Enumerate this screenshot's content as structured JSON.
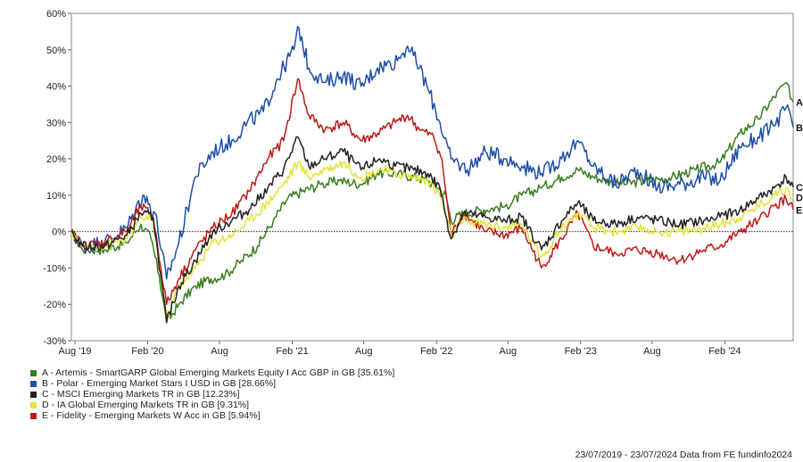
{
  "chart_data": {
    "type": "line",
    "title": "",
    "xlabel": "",
    "ylabel": "",
    "ylim": [
      -30,
      60
    ],
    "y_ticks": [
      -30,
      -20,
      -10,
      0,
      10,
      20,
      30,
      40,
      50,
      60
    ],
    "y_tick_labels": [
      "-30%",
      "-20%",
      "-10%",
      "0%",
      "10%",
      "20%",
      "30%",
      "40%",
      "50%",
      "60%"
    ],
    "x_range": [
      "2019-07-23",
      "2024-07-23"
    ],
    "x_ticks": [
      {
        "date": "2019-08-01",
        "label": "Aug '19"
      },
      {
        "date": "2020-02-01",
        "label": "Feb '20"
      },
      {
        "date": "2020-08-01",
        "label": "Aug"
      },
      {
        "date": "2021-02-01",
        "label": "Feb '21"
      },
      {
        "date": "2021-08-01",
        "label": "Aug"
      },
      {
        "date": "2022-02-01",
        "label": "Feb '22"
      },
      {
        "date": "2022-08-01",
        "label": "Aug"
      },
      {
        "date": "2023-02-01",
        "label": "Feb '23"
      },
      {
        "date": "2023-08-01",
        "label": "Aug"
      },
      {
        "date": "2024-02-01",
        "label": "Feb '24"
      }
    ],
    "zero_line": "dotted",
    "grid": false,
    "legend_position": "bottom-left",
    "series": [
      {
        "id": "A",
        "name": "A - Artemis - SmartGARP Global Emerging Markets Equity I Acc GBP in GB [35.61%]",
        "color": "#3b7d1e",
        "points": [
          [
            "2019-07-23",
            0
          ],
          [
            "2019-08-20",
            -5
          ],
          [
            "2019-10-15",
            -5
          ],
          [
            "2019-12-10",
            -3
          ],
          [
            "2020-01-15",
            2
          ],
          [
            "2020-02-10",
            -2
          ],
          [
            "2020-03-01",
            -12
          ],
          [
            "2020-03-20",
            -25
          ],
          [
            "2020-04-20",
            -20
          ],
          [
            "2020-06-01",
            -15
          ],
          [
            "2020-07-10",
            -13
          ],
          [
            "2020-08-15",
            -12
          ],
          [
            "2020-09-25",
            -8
          ],
          [
            "2020-11-05",
            -4
          ],
          [
            "2020-12-15",
            3
          ],
          [
            "2021-01-20",
            9
          ],
          [
            "2021-02-25",
            11
          ],
          [
            "2021-04-15",
            13
          ],
          [
            "2021-06-01",
            14
          ],
          [
            "2021-07-25",
            13
          ],
          [
            "2021-09-05",
            16
          ],
          [
            "2021-10-20",
            16
          ],
          [
            "2021-12-05",
            15
          ],
          [
            "2022-01-10",
            14
          ],
          [
            "2022-02-05",
            12
          ],
          [
            "2022-02-25",
            10
          ],
          [
            "2022-03-10",
            3
          ],
          [
            "2022-04-10",
            5
          ],
          [
            "2022-06-01",
            6
          ],
          [
            "2022-07-25",
            7
          ],
          [
            "2022-09-05",
            10
          ],
          [
            "2022-10-25",
            12
          ],
          [
            "2022-12-15",
            15
          ],
          [
            "2023-01-25",
            17
          ],
          [
            "2023-03-05",
            15
          ],
          [
            "2023-05-15",
            13
          ],
          [
            "2023-07-20",
            14
          ],
          [
            "2023-09-20",
            15
          ],
          [
            "2023-11-20",
            17
          ],
          [
            "2024-01-20",
            19
          ],
          [
            "2024-03-10",
            27
          ],
          [
            "2024-04-25",
            31
          ],
          [
            "2024-06-05",
            37
          ],
          [
            "2024-07-05",
            41
          ],
          [
            "2024-07-23",
            35.61
          ]
        ]
      },
      {
        "id": "B",
        "name": "B - Polar - Emerging Market Stars I USD in GB [28.66%]",
        "color": "#1f4ea6",
        "points": [
          [
            "2019-07-23",
            0
          ],
          [
            "2019-08-20",
            -4
          ],
          [
            "2019-10-15",
            -3
          ],
          [
            "2019-12-10",
            1
          ],
          [
            "2020-01-20",
            10
          ],
          [
            "2020-02-20",
            5
          ],
          [
            "2020-03-20",
            -13
          ],
          [
            "2020-04-20",
            -3
          ],
          [
            "2020-06-01",
            15
          ],
          [
            "2020-07-15",
            22
          ],
          [
            "2020-09-01",
            25
          ],
          [
            "2020-10-10",
            30
          ],
          [
            "2020-11-20",
            33
          ],
          [
            "2020-12-25",
            42
          ],
          [
            "2021-02-05",
            50
          ],
          [
            "2021-02-18",
            56
          ],
          [
            "2021-03-15",
            45
          ],
          [
            "2021-04-25",
            41
          ],
          [
            "2021-06-10",
            43
          ],
          [
            "2021-07-25",
            40
          ],
          [
            "2021-09-05",
            45
          ],
          [
            "2021-10-25",
            47
          ],
          [
            "2021-11-20",
            51
          ],
          [
            "2021-12-20",
            45
          ],
          [
            "2022-01-15",
            38
          ],
          [
            "2022-02-10",
            30
          ],
          [
            "2022-03-10",
            20
          ],
          [
            "2022-04-20",
            17
          ],
          [
            "2022-06-05",
            22
          ],
          [
            "2022-07-25",
            20
          ],
          [
            "2022-09-05",
            18
          ],
          [
            "2022-10-25",
            16
          ],
          [
            "2022-12-15",
            20
          ],
          [
            "2023-01-25",
            25
          ],
          [
            "2023-03-05",
            18
          ],
          [
            "2023-05-01",
            13
          ],
          [
            "2023-06-25",
            17
          ],
          [
            "2023-08-15",
            12
          ],
          [
            "2023-10-10",
            13
          ],
          [
            "2023-12-10",
            15
          ],
          [
            "2024-01-20",
            14
          ],
          [
            "2024-03-10",
            23
          ],
          [
            "2024-04-25",
            26
          ],
          [
            "2024-06-05",
            29
          ],
          [
            "2024-07-05",
            34
          ],
          [
            "2024-07-23",
            28.66
          ]
        ]
      },
      {
        "id": "C",
        "name": "C - MSCI Emerging Markets TR in GB [12.23%]",
        "color": "#222222",
        "points": [
          [
            "2019-07-23",
            0
          ],
          [
            "2019-08-20",
            -4
          ],
          [
            "2019-10-15",
            -4
          ],
          [
            "2019-12-10",
            -1
          ],
          [
            "2020-01-15",
            5
          ],
          [
            "2020-02-15",
            4
          ],
          [
            "2020-03-20",
            -25
          ],
          [
            "2020-04-20",
            -15
          ],
          [
            "2020-06-01",
            -8
          ],
          [
            "2020-07-15",
            0
          ],
          [
            "2020-09-01",
            3
          ],
          [
            "2020-10-15",
            6
          ],
          [
            "2020-12-01",
            12
          ],
          [
            "2021-01-10",
            17
          ],
          [
            "2021-02-15",
            26
          ],
          [
            "2021-03-15",
            18
          ],
          [
            "2021-04-25",
            20
          ],
          [
            "2021-06-10",
            22
          ],
          [
            "2021-07-25",
            17
          ],
          [
            "2021-09-10",
            20
          ],
          [
            "2021-10-20",
            18
          ],
          [
            "2021-12-05",
            17
          ],
          [
            "2022-01-10",
            16
          ],
          [
            "2022-02-10",
            12
          ],
          [
            "2022-03-10",
            -2
          ],
          [
            "2022-04-10",
            5
          ],
          [
            "2022-06-05",
            4
          ],
          [
            "2022-07-25",
            3
          ],
          [
            "2022-09-05",
            4
          ],
          [
            "2022-10-25",
            -5
          ],
          [
            "2022-12-15",
            3
          ],
          [
            "2023-01-25",
            8
          ],
          [
            "2023-03-05",
            3
          ],
          [
            "2023-05-01",
            2
          ],
          [
            "2023-06-25",
            4
          ],
          [
            "2023-08-15",
            3
          ],
          [
            "2023-10-10",
            2
          ],
          [
            "2023-12-10",
            3
          ],
          [
            "2024-01-20",
            4
          ],
          [
            "2024-03-10",
            6
          ],
          [
            "2024-04-25",
            9
          ],
          [
            "2024-06-05",
            12
          ],
          [
            "2024-07-05",
            15
          ],
          [
            "2024-07-23",
            12.23
          ]
        ]
      },
      {
        "id": "D",
        "name": "D - IA Global Emerging Markets TR in GB [9.31%]",
        "color": "#e3e33a",
        "points": [
          [
            "2019-07-23",
            0
          ],
          [
            "2019-08-20",
            -4
          ],
          [
            "2019-10-15",
            -4
          ],
          [
            "2019-12-10",
            -2
          ],
          [
            "2020-01-15",
            4
          ],
          [
            "2020-02-15",
            3
          ],
          [
            "2020-03-20",
            -24
          ],
          [
            "2020-04-20",
            -15
          ],
          [
            "2020-06-01",
            -10
          ],
          [
            "2020-07-15",
            -3
          ],
          [
            "2020-09-01",
            -1
          ],
          [
            "2020-10-15",
            3
          ],
          [
            "2020-12-01",
            8
          ],
          [
            "2021-01-10",
            13
          ],
          [
            "2021-02-15",
            19
          ],
          [
            "2021-03-15",
            15
          ],
          [
            "2021-04-25",
            17
          ],
          [
            "2021-06-10",
            19
          ],
          [
            "2021-07-25",
            15
          ],
          [
            "2021-09-10",
            17
          ],
          [
            "2021-10-20",
            16
          ],
          [
            "2021-12-05",
            15
          ],
          [
            "2022-01-10",
            14
          ],
          [
            "2022-02-10",
            10
          ],
          [
            "2022-03-10",
            -1
          ],
          [
            "2022-04-10",
            3
          ],
          [
            "2022-06-05",
            2
          ],
          [
            "2022-07-25",
            1
          ],
          [
            "2022-09-05",
            2
          ],
          [
            "2022-10-25",
            -7
          ],
          [
            "2022-12-15",
            1
          ],
          [
            "2023-01-25",
            5
          ],
          [
            "2023-03-05",
            1
          ],
          [
            "2023-05-01",
            0
          ],
          [
            "2023-06-25",
            1
          ],
          [
            "2023-08-15",
            0
          ],
          [
            "2023-10-10",
            0
          ],
          [
            "2023-12-10",
            1
          ],
          [
            "2024-01-20",
            2
          ],
          [
            "2024-03-10",
            4
          ],
          [
            "2024-04-25",
            7
          ],
          [
            "2024-06-05",
            10
          ],
          [
            "2024-07-05",
            12
          ],
          [
            "2024-07-23",
            9.31
          ]
        ]
      },
      {
        "id": "E",
        "name": "E - Fidelity - Emerging Markets W Acc in GB [5.94%]",
        "color": "#c01818",
        "points": [
          [
            "2019-07-23",
            0
          ],
          [
            "2019-08-20",
            -4
          ],
          [
            "2019-10-15",
            -3
          ],
          [
            "2019-12-10",
            0
          ],
          [
            "2020-01-15",
            7
          ],
          [
            "2020-02-15",
            4
          ],
          [
            "2020-03-20",
            -20
          ],
          [
            "2020-04-20",
            -13
          ],
          [
            "2020-06-01",
            -5
          ],
          [
            "2020-07-15",
            1
          ],
          [
            "2020-09-01",
            5
          ],
          [
            "2020-10-15",
            11
          ],
          [
            "2020-12-01",
            20
          ],
          [
            "2021-01-10",
            25
          ],
          [
            "2021-02-15",
            42
          ],
          [
            "2021-03-15",
            32
          ],
          [
            "2021-04-25",
            28
          ],
          [
            "2021-06-10",
            30
          ],
          [
            "2021-07-25",
            25
          ],
          [
            "2021-09-05",
            27
          ],
          [
            "2021-10-20",
            30
          ],
          [
            "2021-11-20",
            32
          ],
          [
            "2021-12-20",
            28
          ],
          [
            "2022-01-25",
            26
          ],
          [
            "2022-02-15",
            20
          ],
          [
            "2022-03-10",
            -1
          ],
          [
            "2022-04-10",
            5
          ],
          [
            "2022-06-05",
            0
          ],
          [
            "2022-07-25",
            -1
          ],
          [
            "2022-09-05",
            1
          ],
          [
            "2022-10-25",
            -10
          ],
          [
            "2022-12-15",
            -2
          ],
          [
            "2023-01-25",
            5
          ],
          [
            "2023-03-05",
            -4
          ],
          [
            "2023-05-01",
            -6
          ],
          [
            "2023-06-25",
            -5
          ],
          [
            "2023-08-15",
            -6
          ],
          [
            "2023-10-10",
            -8
          ],
          [
            "2023-12-10",
            -5
          ],
          [
            "2024-01-20",
            -4
          ],
          [
            "2024-03-10",
            0
          ],
          [
            "2024-04-25",
            3
          ],
          [
            "2024-06-05",
            7
          ],
          [
            "2024-07-05",
            9
          ],
          [
            "2024-07-23",
            5.94
          ]
        ]
      }
    ]
  },
  "footer": "23/07/2019 - 23/07/2024 Data from FE fundinfo2024"
}
